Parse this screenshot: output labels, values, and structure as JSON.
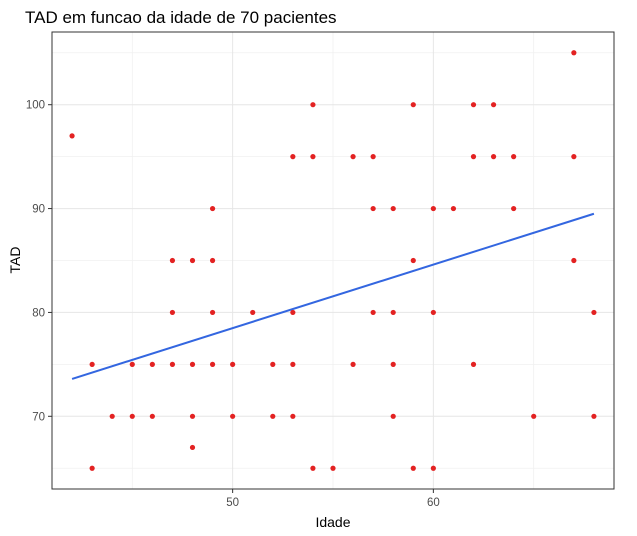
{
  "chart_data": {
    "type": "scatter",
    "title": "TAD em funcao da idade de 70 pacientes",
    "xlabel": "Idade",
    "ylabel": "TAD",
    "xlim": [
      41,
      69
    ],
    "ylim": [
      63,
      107
    ],
    "x_ticks": [
      50,
      60
    ],
    "y_ticks": [
      70,
      80,
      90,
      100
    ],
    "grid": true,
    "point_color": "#e32222",
    "line_color": "#3366e0",
    "points": [
      [
        42,
        97
      ],
      [
        43,
        75
      ],
      [
        43,
        65
      ],
      [
        44,
        70
      ],
      [
        45,
        75
      ],
      [
        45,
        70
      ],
      [
        46,
        75
      ],
      [
        46,
        70
      ],
      [
        47,
        85
      ],
      [
        47,
        80
      ],
      [
        47,
        75
      ],
      [
        48,
        85
      ],
      [
        48,
        75
      ],
      [
        48,
        70
      ],
      [
        48,
        67
      ],
      [
        49,
        90
      ],
      [
        49,
        85
      ],
      [
        49,
        80
      ],
      [
        49,
        75
      ],
      [
        50,
        75
      ],
      [
        50,
        70
      ],
      [
        51,
        80
      ],
      [
        52,
        75
      ],
      [
        52,
        70
      ],
      [
        53,
        95
      ],
      [
        53,
        80
      ],
      [
        53,
        75
      ],
      [
        53,
        70
      ],
      [
        54,
        100
      ],
      [
        54,
        95
      ],
      [
        54,
        65
      ],
      [
        55,
        65
      ],
      [
        56,
        95
      ],
      [
        56,
        75
      ],
      [
        57,
        95
      ],
      [
        57,
        90
      ],
      [
        57,
        80
      ],
      [
        58,
        90
      ],
      [
        58,
        80
      ],
      [
        58,
        75
      ],
      [
        58,
        70
      ],
      [
        59,
        100
      ],
      [
        59,
        85
      ],
      [
        59,
        65
      ],
      [
        60,
        90
      ],
      [
        60,
        80
      ],
      [
        60,
        65
      ],
      [
        61,
        90
      ],
      [
        62,
        100
      ],
      [
        62,
        95
      ],
      [
        62,
        75
      ],
      [
        63,
        100
      ],
      [
        63,
        95
      ],
      [
        64,
        95
      ],
      [
        64,
        90
      ],
      [
        65,
        70
      ],
      [
        67,
        105
      ],
      [
        67,
        95
      ],
      [
        67,
        85
      ],
      [
        68,
        80
      ],
      [
        68,
        70
      ]
    ],
    "trend_line": {
      "x": [
        42,
        68
      ],
      "y": [
        73.6,
        89.5
      ]
    }
  }
}
